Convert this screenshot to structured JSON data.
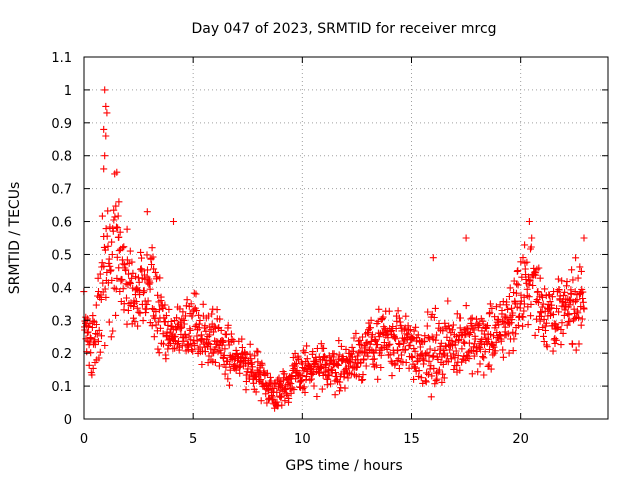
{
  "chart_data": {
    "type": "scatter",
    "title": "Day 047 of 2023, SRMTID for receiver mrcg",
    "xlabel": "GPS time / hours",
    "ylabel": "SRMTID / TECUs",
    "xlim": [
      0,
      24
    ],
    "ylim": [
      0,
      1.1
    ],
    "xticks": [
      0,
      5,
      10,
      15,
      20
    ],
    "xtick_labels": [
      "0",
      "5",
      "10",
      "15",
      "20"
    ],
    "yticks": [
      0,
      0.1,
      0.2,
      0.3,
      0.4,
      0.5,
      0.6,
      0.7,
      0.8,
      0.9,
      1.0,
      1.1
    ],
    "ytick_labels": [
      "0",
      "0.1",
      "0.2",
      "0.3",
      "0.4",
      "0.5",
      "0.6",
      "0.7",
      "0.8",
      "0.9",
      "1",
      "1.1"
    ],
    "grid": true,
    "marker": "+",
    "color": "#ff0000",
    "trend": {
      "x": [
        0,
        0.5,
        1.0,
        1.5,
        2.0,
        2.5,
        3.0,
        3.5,
        4.0,
        5.0,
        6.0,
        7.0,
        8.0,
        8.7,
        9.5,
        10.0,
        11.0,
        12.0,
        13.0,
        14.0,
        15.0,
        16.0,
        17.0,
        18.0,
        19.0,
        20.0,
        20.5,
        21.0,
        22.0,
        22.8
      ],
      "y": [
        0.27,
        0.24,
        0.45,
        0.52,
        0.4,
        0.36,
        0.38,
        0.32,
        0.25,
        0.28,
        0.25,
        0.18,
        0.14,
        0.08,
        0.12,
        0.15,
        0.15,
        0.16,
        0.22,
        0.24,
        0.22,
        0.2,
        0.24,
        0.23,
        0.26,
        0.36,
        0.44,
        0.33,
        0.32,
        0.38
      ],
      "spread": [
        0.08,
        0.09,
        0.18,
        0.14,
        0.1,
        0.1,
        0.11,
        0.08,
        0.07,
        0.08,
        0.08,
        0.06,
        0.05,
        0.04,
        0.05,
        0.06,
        0.05,
        0.06,
        0.07,
        0.08,
        0.08,
        0.09,
        0.08,
        0.08,
        0.08,
        0.1,
        0.1,
        0.09,
        0.09,
        0.1
      ]
    },
    "peaks": [
      {
        "x": 0.95,
        "y": 1.0
      },
      {
        "x": 1.0,
        "y": 0.95
      },
      {
        "x": 1.05,
        "y": 0.93
      },
      {
        "x": 0.9,
        "y": 0.88
      },
      {
        "x": 1.0,
        "y": 0.86
      },
      {
        "x": 0.95,
        "y": 0.8
      },
      {
        "x": 0.9,
        "y": 0.76
      },
      {
        "x": 1.5,
        "y": 0.75
      },
      {
        "x": 1.6,
        "y": 0.66
      },
      {
        "x": 2.9,
        "y": 0.63
      },
      {
        "x": 4.1,
        "y": 0.6
      },
      {
        "x": 20.4,
        "y": 0.6
      },
      {
        "x": 22.9,
        "y": 0.55
      },
      {
        "x": 17.5,
        "y": 0.55
      },
      {
        "x": 16.0,
        "y": 0.49
      }
    ],
    "point_count": 1400,
    "x_range": [
      0.0,
      22.9
    ]
  }
}
